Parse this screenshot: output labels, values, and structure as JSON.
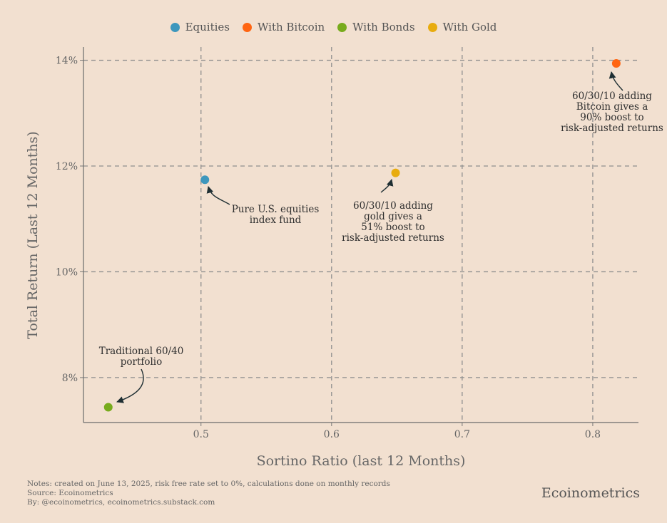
{
  "chart_data": {
    "type": "scatter",
    "xlabel": "Sortino Ratio (last 12 Months)",
    "ylabel": "Total Return (Last 12 Months)",
    "xlim": [
      0.41,
      0.835
    ],
    "ylim": [
      7.15,
      14.25
    ],
    "xticks": [
      0.5,
      0.6,
      0.7,
      0.8
    ],
    "xtick_labels": [
      "0.5",
      "0.6",
      "0.7",
      "0.8"
    ],
    "yticks": [
      8,
      10,
      12,
      14
    ],
    "ytick_labels": [
      "8%",
      "10%",
      "12%",
      "14%"
    ],
    "grid": true,
    "legend_position": "top-center",
    "series": [
      {
        "name": "Equities",
        "color": "#3d97bd",
        "x": [
          0.503
        ],
        "y": [
          11.74
        ]
      },
      {
        "name": "With Bitcoin",
        "color": "#ff6512",
        "x": [
          0.818
        ],
        "y": [
          13.94
        ]
      },
      {
        "name": "With Bonds",
        "color": "#78ab1d",
        "x": [
          0.429
        ],
        "y": [
          7.44
        ]
      },
      {
        "name": "With Gold",
        "color": "#e8ac0f",
        "x": [
          0.649
        ],
        "y": [
          11.87
        ]
      }
    ],
    "annotations": [
      {
        "series": "With Bonds",
        "lines": [
          "Traditional 60/40",
          "portfolio"
        ]
      },
      {
        "series": "Equities",
        "lines": [
          "Pure U.S. equities",
          "index fund"
        ]
      },
      {
        "series": "With Gold",
        "lines": [
          "60/30/10 adding",
          "gold gives a",
          "51% boost to",
          "risk-adjusted returns"
        ]
      },
      {
        "series": "With Bitcoin",
        "lines": [
          "60/30/10 adding",
          "Bitcoin gives a",
          "90% boost to",
          "risk-adjusted returns"
        ]
      }
    ]
  },
  "footer": {
    "notes": "Notes: created on June 13, 2025, risk free rate set to 0%, calculations done on monthly records",
    "source": "Source: Ecoinometrics",
    "by": "By: @ecoinometrics, ecoinometrics.substack.com",
    "brand": "Ecoinometrics"
  }
}
